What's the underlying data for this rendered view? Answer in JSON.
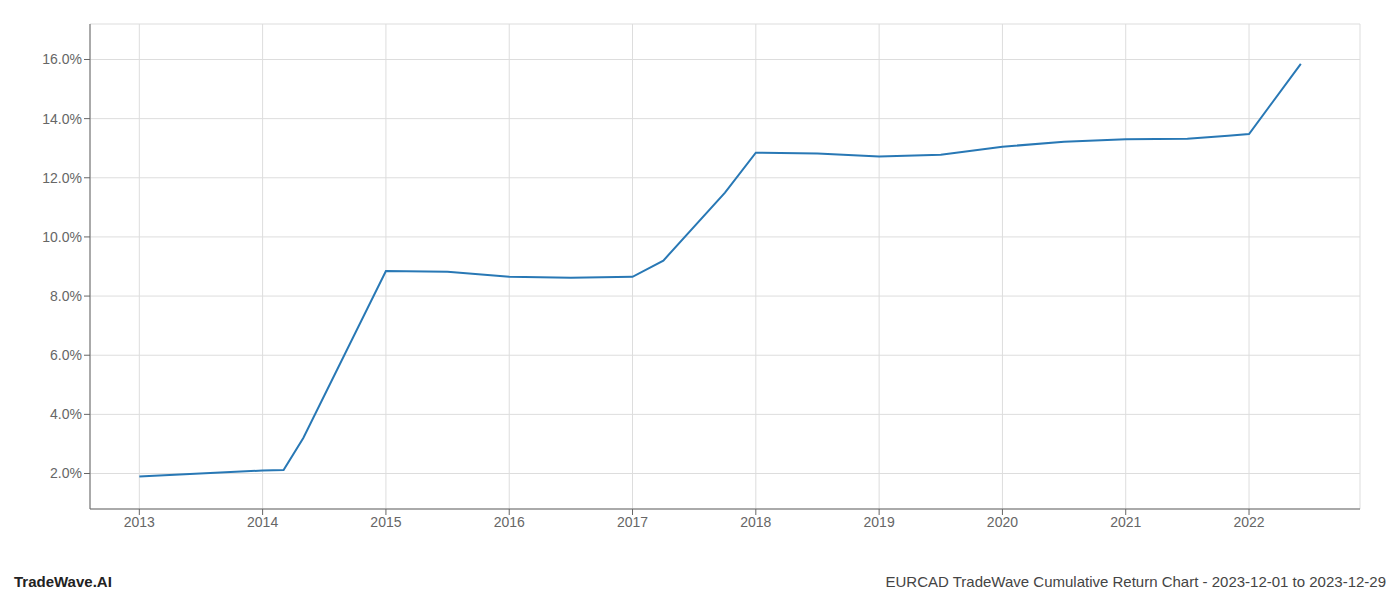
{
  "chart_data": {
    "type": "line",
    "x": [
      2013.0,
      2013.08,
      2014.0,
      2014.17,
      2014.33,
      2015.0,
      2015.5,
      2016.0,
      2016.5,
      2017.0,
      2017.25,
      2017.75,
      2018.0,
      2018.5,
      2019.0,
      2019.5,
      2020.0,
      2020.5,
      2021.0,
      2021.5,
      2021.83,
      2022.0,
      2022.42
    ],
    "values": [
      1.9,
      1.92,
      2.1,
      2.12,
      3.2,
      8.85,
      8.82,
      8.65,
      8.62,
      8.65,
      9.2,
      11.5,
      12.85,
      12.82,
      12.72,
      12.78,
      13.05,
      13.22,
      13.3,
      13.32,
      13.42,
      13.48,
      15.85
    ],
    "color": "#2878b5",
    "xlim": [
      2012.6,
      2022.9
    ],
    "ylim": [
      0.8,
      17.2
    ],
    "xticks": [
      2013,
      2014,
      2015,
      2016,
      2017,
      2018,
      2019,
      2020,
      2021,
      2022
    ],
    "yticks": [
      {
        "value": 2.0,
        "label": "2.0%"
      },
      {
        "value": 4.0,
        "label": "4.0%"
      },
      {
        "value": 6.0,
        "label": "6.0%"
      },
      {
        "value": 8.0,
        "label": "8.0%"
      },
      {
        "value": 10.0,
        "label": "10.0%"
      },
      {
        "value": 12.0,
        "label": "12.0%"
      },
      {
        "value": 14.0,
        "label": "14.0%"
      },
      {
        "value": 16.0,
        "label": "16.0%"
      }
    ],
    "grid": true,
    "annotations": [
      "TradeWave.AI",
      "EURCAD TradeWave Cumulative Return Chart - 2023-12-01 to 2023-12-29"
    ]
  }
}
